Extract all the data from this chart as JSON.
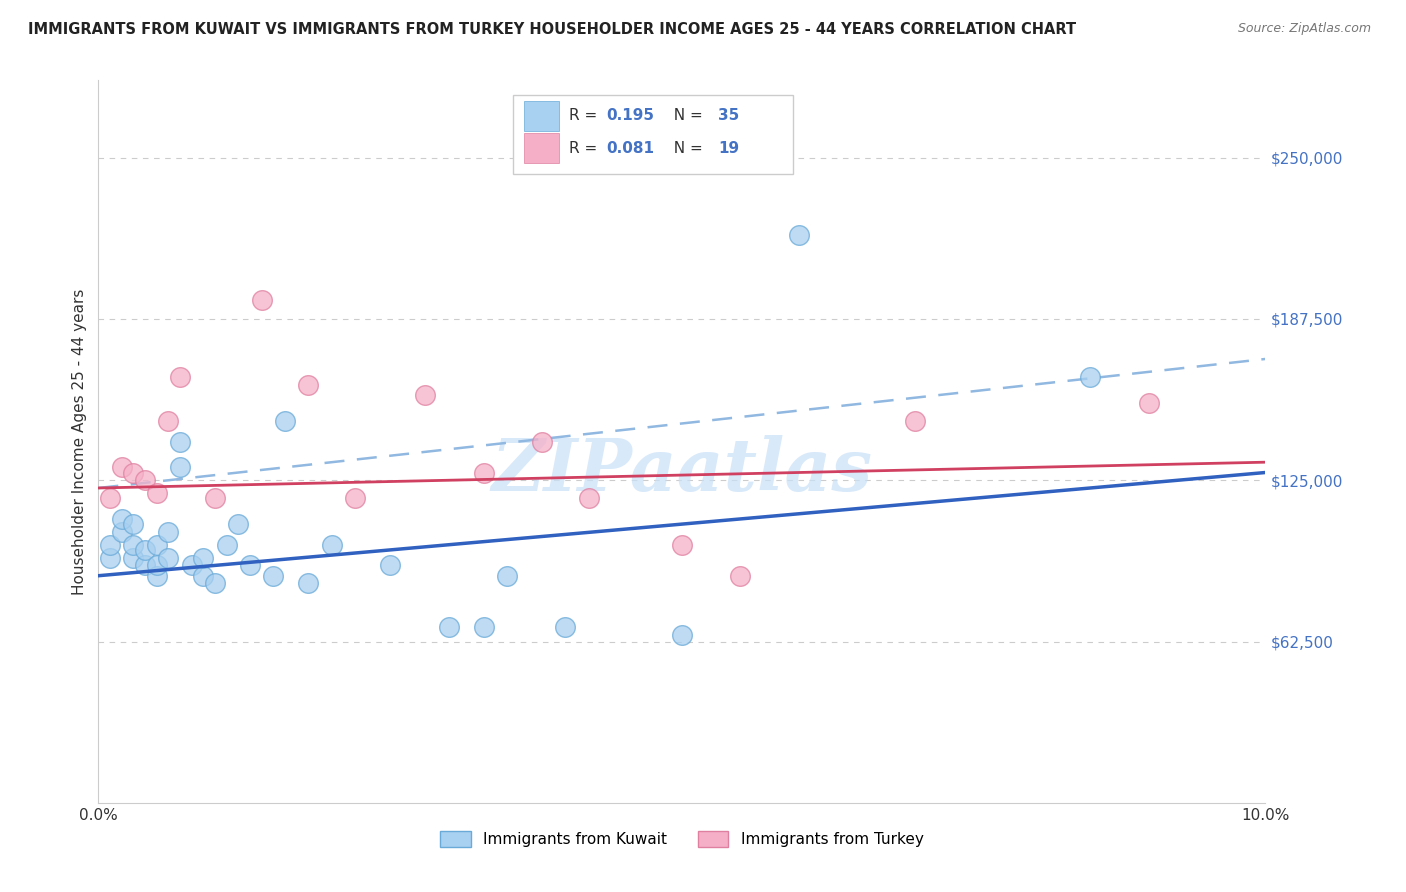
{
  "title": "IMMIGRANTS FROM KUWAIT VS IMMIGRANTS FROM TURKEY HOUSEHOLDER INCOME AGES 25 - 44 YEARS CORRELATION CHART",
  "source": "Source: ZipAtlas.com",
  "ylabel": "Householder Income Ages 25 - 44 years",
  "xlim": [
    0,
    0.1
  ],
  "ylim": [
    0,
    280000
  ],
  "yticks": [
    62500,
    125000,
    187500,
    250000
  ],
  "ytick_labels": [
    "$62,500",
    "$125,000",
    "$187,500",
    "$250,000"
  ],
  "xticks": [
    0.0,
    0.02,
    0.04,
    0.06,
    0.08,
    0.1
  ],
  "kuwait_color": "#a8d0f0",
  "turkey_color": "#f5b0c8",
  "kuwait_edge": "#6aaad8",
  "turkey_edge": "#e080a0",
  "blue_line_color": "#3060c0",
  "pink_line_color": "#d04060",
  "dashed_line_color": "#90b8e0",
  "ytick_color": "#4472c4",
  "background_color": "#ffffff",
  "grid_color": "#cccccc",
  "kuwait_r": "0.195",
  "kuwait_n": "35",
  "turkey_r": "0.081",
  "turkey_n": "19",
  "kuwait_scatter_x": [
    0.001,
    0.001,
    0.002,
    0.002,
    0.003,
    0.003,
    0.003,
    0.004,
    0.004,
    0.005,
    0.005,
    0.005,
    0.006,
    0.006,
    0.007,
    0.007,
    0.008,
    0.009,
    0.009,
    0.01,
    0.011,
    0.012,
    0.013,
    0.015,
    0.016,
    0.018,
    0.02,
    0.025,
    0.03,
    0.033,
    0.035,
    0.04,
    0.05,
    0.06,
    0.085
  ],
  "kuwait_scatter_y": [
    95000,
    100000,
    105000,
    110000,
    95000,
    100000,
    108000,
    92000,
    98000,
    88000,
    92000,
    100000,
    105000,
    95000,
    140000,
    130000,
    92000,
    88000,
    95000,
    85000,
    100000,
    108000,
    92000,
    88000,
    148000,
    85000,
    100000,
    92000,
    68000,
    68000,
    88000,
    68000,
    65000,
    220000,
    165000
  ],
  "turkey_scatter_x": [
    0.001,
    0.002,
    0.003,
    0.004,
    0.005,
    0.006,
    0.007,
    0.01,
    0.014,
    0.018,
    0.022,
    0.028,
    0.033,
    0.038,
    0.042,
    0.05,
    0.055,
    0.07,
    0.09
  ],
  "turkey_scatter_y": [
    118000,
    130000,
    128000,
    125000,
    120000,
    148000,
    165000,
    118000,
    195000,
    162000,
    118000,
    158000,
    128000,
    140000,
    118000,
    100000,
    88000,
    148000,
    155000
  ],
  "blue_line_x": [
    0.0,
    0.1
  ],
  "blue_line_y": [
    88000,
    128000
  ],
  "pink_line_x": [
    0.0,
    0.1
  ],
  "pink_line_y": [
    122000,
    132000
  ],
  "dashed_line_x": [
    0.0,
    0.1
  ],
  "dashed_line_y": [
    122000,
    172000
  ],
  "watermark_text": "ZIPaatlas",
  "watermark_color": "#c8e0f8",
  "watermark_alpha": 0.7
}
